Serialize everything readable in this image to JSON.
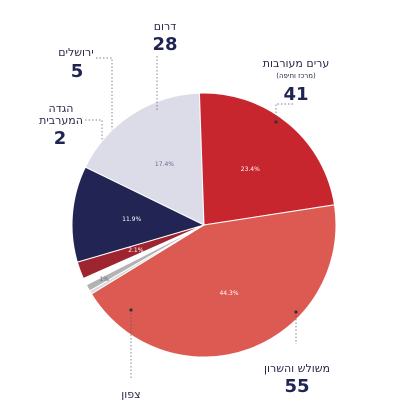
{
  "chart_data": {
    "type": "pie",
    "title": "",
    "series": [
      {
        "name": "",
        "slices": [
          {
            "label": "ערים מעורבות",
            "sublabel": "(מרכז וחיפה)",
            "value": 41,
            "percent_label": "17.4%",
            "color": "#dcdbe8"
          },
          {
            "label": "משולש והשרון",
            "value": 55,
            "percent_label": "23.4%",
            "color": "#c8262f"
          },
          {
            "label": "צפון",
            "value": 104,
            "percent_label": "44.3%",
            "color": "#dd5a52"
          },
          {
            "label": "",
            "value": 1,
            "percent_label": "",
            "color": "#d9d9d9"
          },
          {
            "label": "",
            "value": 2,
            "percent_label": "1%",
            "color": "#b3b3b3"
          },
          {
            "label": "הגדה המערבית",
            "value": 2,
            "percent_label": "",
            "color": "#ffffff"
          },
          {
            "label": "ירושלים",
            "value": 5,
            "percent_label": "2.1%",
            "color": "#9e2530"
          },
          {
            "label": "דרום",
            "value": 28,
            "percent_label": "11.9%",
            "color": "#222454"
          }
        ]
      }
    ]
  },
  "labels": {
    "darom": {
      "name": "דרום",
      "value": "28"
    },
    "yerushalayim": {
      "name": "ירושלים",
      "value": "5"
    },
    "hagada": {
      "name1": "הגדה",
      "name2": "המערבית",
      "value": "2"
    },
    "arim": {
      "name": "ערים מעורבות",
      "sub": "(מרכז וחיפה)",
      "value": "41"
    },
    "meshulash": {
      "name": "משולש והשרון",
      "value": "55"
    },
    "tzafon": {
      "name": "צפון"
    }
  }
}
